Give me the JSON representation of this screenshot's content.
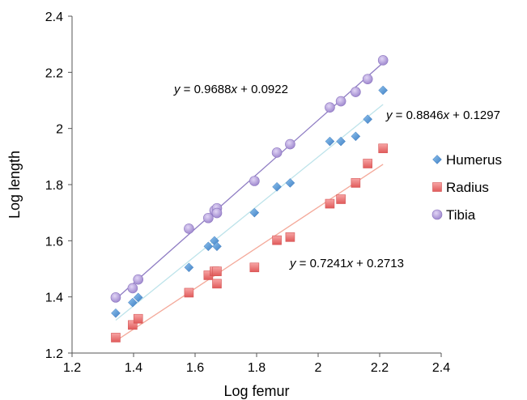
{
  "chart_data": {
    "type": "scatter",
    "title": "",
    "xlabel": "Log femur",
    "ylabel": "Log length",
    "xlim": [
      1.2,
      2.4
    ],
    "ylim": [
      1.2,
      2.4
    ],
    "xticks": [
      "1.2",
      "1.4",
      "1.6",
      "1.8",
      "2",
      "2.2",
      "2.4"
    ],
    "yticks": [
      "1.2",
      "1.4",
      "1.6",
      "1.8",
      "2",
      "2.2",
      "2.4"
    ],
    "grid": false,
    "legend_position": "right",
    "series": [
      {
        "name": "Humerus",
        "marker": "diamond",
        "color": "#5b9bd5",
        "trend_color": "#bde3ea",
        "equation": "y = 0.8846x + 0.1297",
        "slope": 0.8846,
        "intercept": 0.1297,
        "x": [
          1.342,
          1.397,
          1.415,
          1.58,
          1.643,
          1.663,
          1.671,
          1.793,
          1.866,
          1.909,
          2.038,
          2.074,
          2.122,
          2.161,
          2.211
        ],
        "y": [
          1.342,
          1.38,
          1.398,
          1.505,
          1.58,
          1.6,
          1.58,
          1.7,
          1.792,
          1.806,
          1.954,
          1.954,
          1.972,
          2.033,
          2.136
        ]
      },
      {
        "name": "Radius",
        "marker": "square",
        "color": "#f08080",
        "trend_color": "#f4a99a",
        "equation": "y = 0.7241x + 0.2713",
        "slope": 0.7241,
        "intercept": 0.2713,
        "x": [
          1.342,
          1.397,
          1.415,
          1.58,
          1.643,
          1.663,
          1.671,
          1.671,
          1.793,
          1.866,
          1.909,
          2.038,
          2.074,
          2.122,
          2.161,
          2.211
        ],
        "y": [
          1.255,
          1.3,
          1.322,
          1.415,
          1.477,
          1.491,
          1.491,
          1.447,
          1.505,
          1.602,
          1.613,
          1.732,
          1.748,
          1.806,
          1.875,
          1.929
        ]
      },
      {
        "name": "Tibia",
        "marker": "circle",
        "color": "#b39ddb",
        "trend_color": "#8e7cc3",
        "equation": "y = 0.9688x + 0.0922",
        "slope": 0.9688,
        "intercept": 0.0922,
        "x": [
          1.342,
          1.397,
          1.415,
          1.58,
          1.643,
          1.663,
          1.671,
          1.671,
          1.793,
          1.866,
          1.909,
          2.038,
          2.074,
          2.122,
          2.161,
          2.211
        ],
        "y": [
          1.398,
          1.431,
          1.462,
          1.643,
          1.681,
          1.708,
          1.716,
          1.699,
          1.813,
          1.914,
          1.944,
          2.075,
          2.097,
          2.13,
          2.176,
          2.243
        ]
      }
    ]
  }
}
